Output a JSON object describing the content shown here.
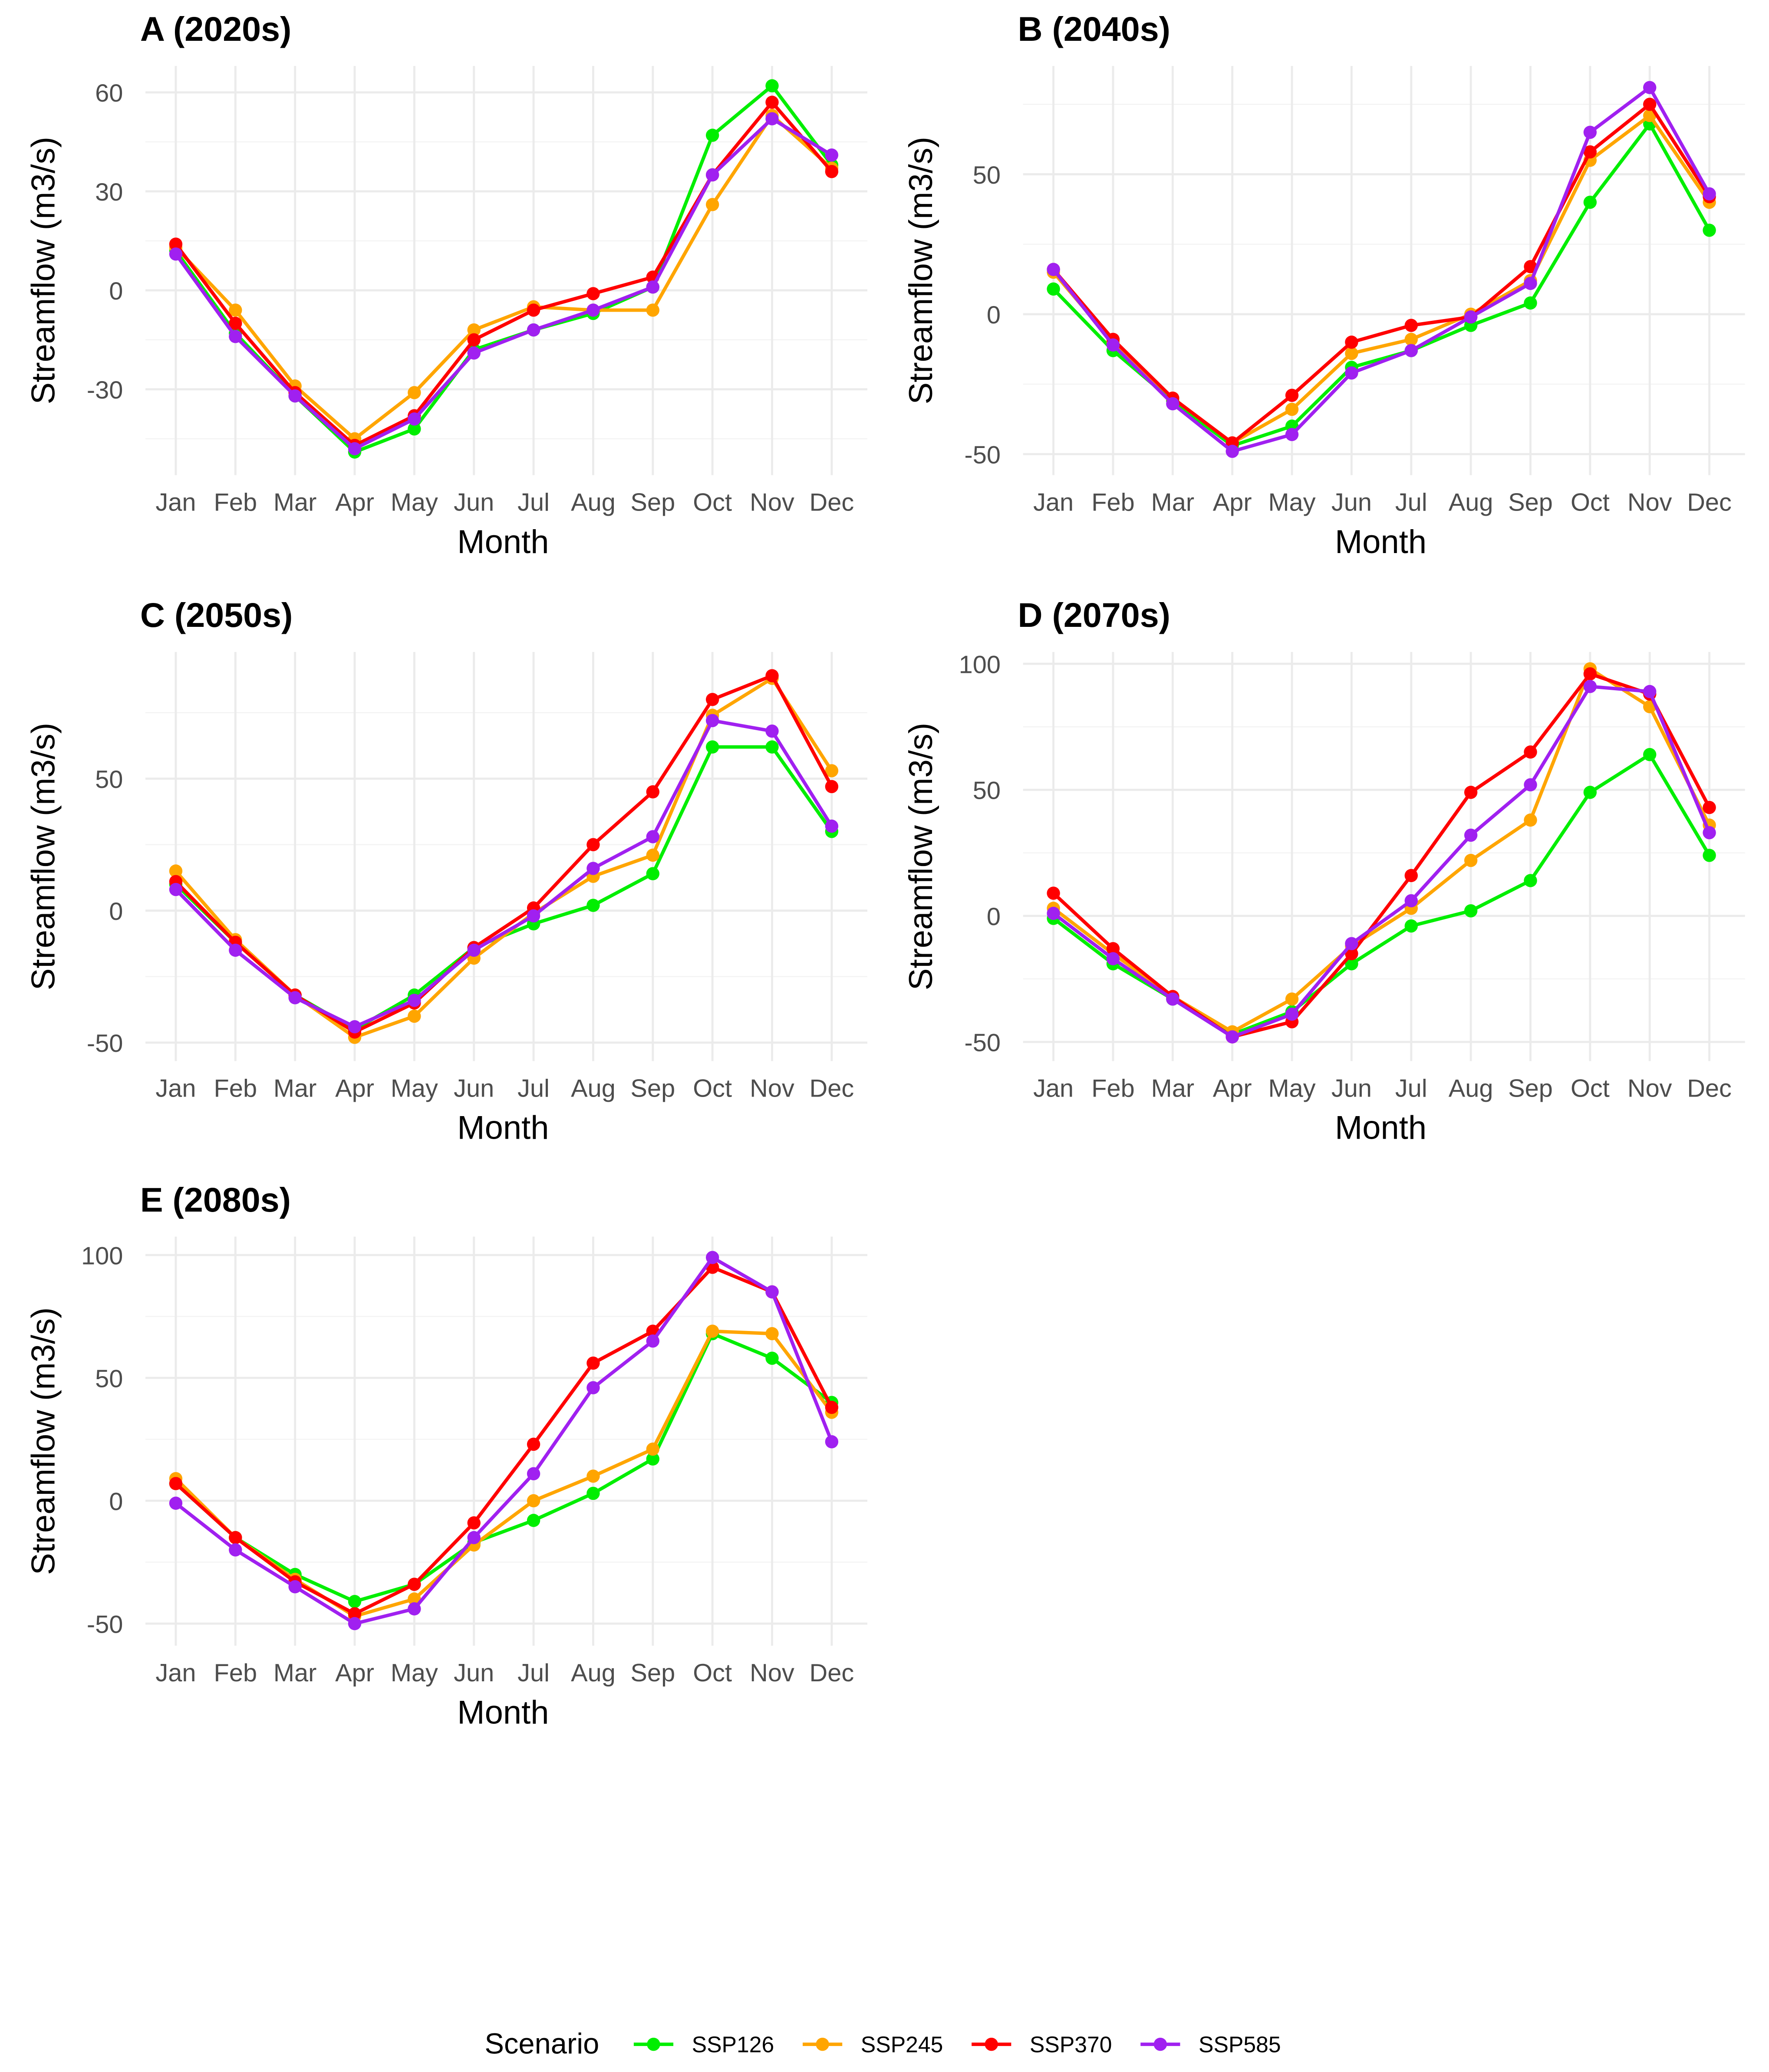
{
  "chart_data": {
    "type": "line",
    "legend": {
      "title": "Scenario",
      "position": "bottom"
    },
    "series_colors": {
      "SSP126": "#00ee00",
      "SSP245": "#ffa500",
      "SSP370": "#ff0000",
      "SSP585": "#a020f0"
    },
    "series_names": [
      "SSP126",
      "SSP245",
      "SSP370",
      "SSP585"
    ],
    "categories": [
      "Jan",
      "Feb",
      "Mar",
      "Apr",
      "May",
      "Jun",
      "Jul",
      "Aug",
      "Sep",
      "Oct",
      "Nov",
      "Dec"
    ],
    "panels": [
      {
        "title": "A (2020s)",
        "xlabel": "Month",
        "ylabel": "Streamflow (m3/s)",
        "ylim": [
          -56,
          68
        ],
        "yticks": [
          -30,
          0,
          30,
          60
        ],
        "series": [
          {
            "name": "SSP126",
            "values": [
              12,
              -13,
              -32,
              -49,
              -42,
              -18,
              -12,
              -7,
              1,
              47,
              62,
              38
            ]
          },
          {
            "name": "SSP245",
            "values": [
              13,
              -6,
              -29,
              -45,
              -31,
              -12,
              -5,
              -6,
              -6,
              26,
              53,
              37
            ]
          },
          {
            "name": "SSP370",
            "values": [
              14,
              -10,
              -31,
              -47,
              -38,
              -15,
              -6,
              -1,
              4,
              35,
              57,
              36
            ]
          },
          {
            "name": "SSP585",
            "values": [
              11,
              -14,
              -32,
              -48,
              -39,
              -19,
              -12,
              -6,
              1,
              35,
              52,
              41
            ]
          }
        ]
      },
      {
        "title": "B (2040s)",
        "xlabel": "Month",
        "ylabel": "Streamflow (m3/s)",
        "ylim": [
          -57.5,
          88.7
        ],
        "yticks": [
          -50,
          0,
          50
        ],
        "series": [
          {
            "name": "SSP126",
            "values": [
              9,
              -13,
              -31,
              -47,
              -40,
              -19,
              -13,
              -4,
              4,
              40,
              68,
              30
            ]
          },
          {
            "name": "SSP245",
            "values": [
              15,
              -10,
              -30,
              -46,
              -34,
              -14,
              -9,
              0,
              12,
              55,
              71,
              40
            ]
          },
          {
            "name": "SSP370",
            "values": [
              16,
              -9,
              -30,
              -46,
              -29,
              -10,
              -4,
              -1,
              17,
              58,
              75,
              42
            ]
          },
          {
            "name": "SSP585",
            "values": [
              16,
              -11,
              -32,
              -49,
              -43,
              -21,
              -13,
              -1,
              11,
              65,
              81,
              43
            ]
          }
        ]
      },
      {
        "title": "C (2050s)",
        "xlabel": "Month",
        "ylabel": "Streamflow (m3/s)",
        "ylim": [
          -57,
          98
        ],
        "yticks": [
          -50,
          0,
          50
        ],
        "series": [
          {
            "name": "SSP126",
            "values": [
              10,
              -12,
              -32,
              -45,
              -32,
              -14,
              -5,
              2,
              14,
              62,
              62,
              30
            ]
          },
          {
            "name": "SSP245",
            "values": [
              15,
              -11,
              -32,
              -48,
              -40,
              -18,
              -1,
              13,
              21,
              74,
              88,
              53
            ]
          },
          {
            "name": "SSP370",
            "values": [
              11,
              -12,
              -32,
              -46,
              -35,
              -14,
              1,
              25,
              45,
              80,
              89,
              47
            ]
          },
          {
            "name": "SSP585",
            "values": [
              8,
              -15,
              -33,
              -44,
              -34,
              -15,
              -2,
              16,
              28,
              72,
              68,
              32
            ]
          }
        ]
      },
      {
        "title": "D (2070s)",
        "xlabel": "Month",
        "ylabel": "Streamflow (m3/s)",
        "ylim": [
          -57.6,
          104.7
        ],
        "yticks": [
          -50,
          0,
          50,
          100
        ],
        "series": [
          {
            "name": "SSP126",
            "values": [
              -1,
              -19,
              -33,
              -47,
              -38,
              -19,
              -4,
              2,
              14,
              49,
              64,
              24
            ]
          },
          {
            "name": "SSP245",
            "values": [
              3,
              -15,
              -32,
              -46,
              -33,
              -12,
              3,
              22,
              38,
              98,
              83,
              36
            ]
          },
          {
            "name": "SSP370",
            "values": [
              9,
              -13,
              -32,
              -48,
              -42,
              -15,
              16,
              49,
              65,
              96,
              88,
              43
            ]
          },
          {
            "name": "SSP585",
            "values": [
              1,
              -17,
              -33,
              -48,
              -39,
              -11,
              6,
              32,
              52,
              91,
              89,
              33
            ]
          }
        ]
      },
      {
        "title": "E (2080s)",
        "xlabel": "Month",
        "ylabel": "Streamflow (m3/s)",
        "ylim": [
          -59,
          107.5
        ],
        "yticks": [
          -50,
          0,
          50,
          100
        ],
        "series": [
          {
            "name": "SSP126",
            "values": [
              7,
              -15,
              -30,
              -41,
              -34,
              -17,
              -8,
              3,
              17,
              68,
              58,
              40
            ]
          },
          {
            "name": "SSP245",
            "values": [
              9,
              -15,
              -32,
              -47,
              -40,
              -18,
              0,
              10,
              21,
              69,
              68,
              36
            ]
          },
          {
            "name": "SSP370",
            "values": [
              7,
              -15,
              -33,
              -46,
              -34,
              -9,
              23,
              56,
              69,
              95,
              85,
              38
            ]
          },
          {
            "name": "SSP585",
            "values": [
              -1,
              -20,
              -35,
              -50,
              -44,
              -15,
              11,
              46,
              65,
              99,
              85,
              24
            ]
          }
        ]
      }
    ]
  }
}
